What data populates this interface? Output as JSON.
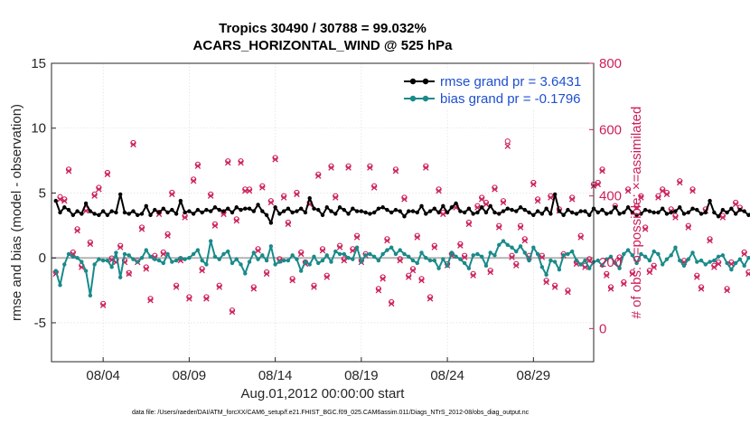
{
  "chart_data": {
    "type": "line",
    "title": "Tropics 30490 / 30788 = 99.032%",
    "subtitle": "ACARS_HORIZONTAL_WIND @ 525 hPa",
    "xlabel": "Aug.01,2012 00:00:00 start",
    "ylabel": "rmse and bias (model - observation)",
    "y2label": "# of obs: o=possible; ×=assimilated",
    "footer": "data file: /Users/raeder/DAI/ATM_forcXX/CAM6_setup/f.e21.FHIST_BGC.f09_025.CAM6assim.011/Diags_NTrS_2012-08/obs_diag_output.nc",
    "xlim": [
      0.5,
      32.0
    ],
    "ylim": [
      -8,
      15
    ],
    "y2lim": [
      -100,
      800
    ],
    "x_ticks": [
      3.5,
      8.5,
      13.5,
      18.5,
      23.5,
      28.5
    ],
    "x_tick_labels": [
      "08/04",
      "08/09",
      "08/14",
      "08/19",
      "08/24",
      "08/29"
    ],
    "y_ticks": [
      -5,
      0,
      5,
      10,
      15
    ],
    "y_tick_labels": [
      "-5",
      "0",
      "5",
      "10",
      "15"
    ],
    "y2_ticks": [
      0,
      200,
      400,
      600,
      800
    ],
    "y2_tick_labels": [
      "0",
      "200",
      "400",
      "600",
      "800"
    ],
    "grid": true,
    "legend_position": "top-right",
    "zero_line": 0,
    "x_start": 0.75,
    "x_step": 0.25,
    "series": [
      {
        "name": "rmse grand pr = 3.6431",
        "axis": "left",
        "color": "#000000",
        "marker": "circle",
        "values": [
          4.4,
          3.5,
          3.9,
          3.7,
          3.3,
          3.6,
          3.4,
          4.2,
          3.6,
          3.4,
          3.3,
          3.6,
          3.3,
          3.6,
          3.5,
          4.9,
          3.5,
          3.4,
          3.6,
          3.3,
          3.4,
          4.0,
          3.3,
          3.7,
          3.5,
          3.8,
          3.5,
          3.7,
          3.4,
          4.4,
          3.5,
          3.6,
          3.4,
          3.7,
          3.5,
          3.7,
          3.6,
          3.9,
          3.7,
          3.6,
          3.8,
          3.5,
          3.9,
          3.7,
          3.8,
          3.8,
          3.6,
          4.1,
          3.6,
          3.3,
          2.7,
          3.9,
          3.4,
          3.6,
          3.8,
          3.5,
          3.6,
          3.8,
          3.5,
          4.6,
          3.8,
          3.7,
          3.3,
          3.9,
          3.6,
          3.4,
          3.9,
          3.7,
          3.4,
          3.8,
          3.6,
          3.6,
          3.5,
          3.4,
          3.5,
          3.8,
          3.9,
          3.7,
          3.5,
          3.7,
          3.6,
          3.2,
          3.6,
          3.6,
          3.5,
          4.0,
          3.4,
          3.6,
          3.8,
          3.5,
          4.0,
          3.5,
          3.9,
          4.2,
          3.6,
          3.5,
          3.8,
          3.4,
          3.5,
          3.9,
          3.5,
          4.0,
          3.5,
          3.4,
          3.6,
          3.8,
          3.7,
          3.6,
          3.9,
          3.7,
          3.5,
          3.3,
          3.6,
          3.4,
          3.8,
          3.4,
          4.9,
          3.6,
          3.3,
          3.7,
          3.5,
          3.4,
          3.6,
          3.6,
          3.3,
          3.8,
          3.5,
          3.7,
          3.4,
          3.5,
          3.9,
          3.4,
          3.5,
          3.9,
          3.5,
          3.3,
          3.4,
          3.7,
          3.6,
          3.5,
          3.5,
          3.8,
          3.4,
          3.5,
          3.6,
          3.9,
          3.4,
          3.5,
          3.8,
          3.7,
          3.4,
          3.5,
          4.4,
          3.5,
          3.2,
          3.7,
          3.5,
          3.8,
          3.4,
          3.7,
          3.6,
          3.3,
          3.6,
          3.8,
          3.3,
          3.5,
          3.5,
          4.1,
          3.4,
          3.5,
          3.8,
          3.6,
          2.8,
          3.4,
          3.7,
          3.6,
          3.4,
          3.8,
          3.4,
          3.2,
          3.9,
          3.6,
          3.4,
          3.8,
          3.5,
          3.7,
          3.4,
          3.6,
          3.3,
          5.0,
          4.6,
          3.4,
          3.9,
          3.5,
          3.7,
          3.4,
          3.3,
          3.5,
          3.8,
          3.6,
          3.4,
          3.8,
          3.5,
          3.6,
          3.9,
          3.7,
          3.3,
          3.6,
          3.8,
          3.9,
          3.5,
          4.7,
          4.4,
          4.0,
          3.5,
          3.6
        ]
      },
      {
        "name": "bias grand pr = -0.1796",
        "axis": "left",
        "color": "#1a8a8a",
        "marker": "circle",
        "values": [
          -1.0,
          -2.1,
          -0.5,
          0.3,
          0.1,
          0.0,
          -0.3,
          -1.0,
          -2.9,
          -0.5,
          -0.1,
          -0.2,
          -0.2,
          -0.7,
          0.4,
          -1.5,
          0.3,
          0.2,
          -0.1,
          -0.3,
          0.0,
          0.6,
          0.1,
          -0.1,
          -0.2,
          -0.4,
          0.3,
          -0.3,
          -0.2,
          0.0,
          -0.1,
          0.0,
          0.3,
          0.6,
          -0.2,
          -0.5,
          1.3,
          0.1,
          -0.1,
          0.3,
          0.5,
          -0.4,
          -0.1,
          -0.5,
          -1.2,
          -0.3,
          0.4,
          -0.1,
          0.2,
          -0.2,
          0.9,
          -0.5,
          -0.3,
          -0.2,
          -0.2,
          0.2,
          -0.1,
          -1.0,
          -0.3,
          -0.5,
          0.1,
          -0.4,
          -0.2,
          0.2,
          -0.3,
          0.5,
          0.3,
          0.3,
          0.0,
          -0.1,
          0.8,
          -0.3,
          0.2,
          0.3,
          0.1,
          -0.2,
          0.3,
          0.6,
          0.8,
          0.3,
          0.6,
          0.3,
          0.1,
          -0.2,
          -0.4,
          0.4,
          0.0,
          -0.2,
          -0.2,
          -0.8,
          -0.1,
          -0.6,
          0.4,
          0.1,
          -0.1,
          -0.4,
          -0.8,
          0.2,
          0.3,
          0.1,
          -0.6,
          0.4,
          0.2,
          1.0,
          1.3,
          1.0,
          0.8,
          0.5,
          0.9,
          0.4,
          -0.2,
          0.8,
          0.3,
          -0.7,
          -1.3,
          -0.2,
          -0.3,
          -0.9,
          0.2,
          0.3,
          0.5,
          -0.2,
          -0.5,
          -0.2,
          -0.8,
          -0.3,
          -0.2,
          -0.6,
          -0.1,
          0.1,
          -0.4,
          -0.8,
          0.3,
          0.6,
          0.2,
          -0.4,
          0.3,
          0.1,
          -0.2,
          0.5,
          0.3,
          -0.5,
          -0.1,
          0.2,
          0.8,
          -0.2,
          -0.6,
          -0.1,
          0.4,
          -0.3,
          -0.2,
          -0.5,
          -0.3,
          -0.2,
          0.1,
          0.2,
          -0.4,
          -0.9,
          -0.4,
          -0.1,
          -0.6,
          0.0,
          0.2,
          -0.3,
          0.1,
          -0.8,
          0.2,
          -0.4,
          -0.1,
          0.4,
          0.1,
          -0.1,
          0.4,
          -0.2,
          -0.5,
          -0.1,
          0.3,
          0.0,
          -0.3,
          0.5,
          0.1,
          -0.2,
          0.1,
          -0.4,
          -0.1,
          -2.6,
          -0.6,
          -0.1,
          -3.4,
          -4.6,
          -0.2,
          -0.6,
          0.1,
          0.7,
          -0.7,
          -2.0,
          -0.5,
          0.3,
          0.0,
          -0.3,
          0.6,
          -0.1,
          0.2,
          0.0,
          -0.2,
          0.3,
          -0.1,
          0.1,
          -0.4,
          -0.2,
          0.1,
          -0.8,
          0.1,
          -0.2,
          -0.6,
          0.4,
          0.2
        ]
      },
      {
        "name": "obs possible",
        "axis": "right",
        "color": "#cc1f5a",
        "marker": "o",
        "values": [
          170,
          397,
          390,
          480,
          230,
          300,
          190,
          360,
          260,
          405,
          425,
          75,
          470,
          212,
          207,
          250,
          205,
          168,
          560,
          205,
          305,
          185,
          90,
          220,
          350,
          230,
          285,
          410,
          130,
          210,
          340,
          95,
          450,
          495,
          180,
          95,
          405,
          315,
          130,
          350,
          505,
          55,
          330,
          505,
          420,
          420,
          125,
          240,
          430,
          170,
          385,
          515,
          210,
          400,
          320,
          150,
          410,
          230,
          200,
          380,
          130,
          465,
          240,
          160,
          490,
          400,
          250,
          210,
          490,
          240,
          280,
          205,
          225,
          490,
          430,
          120,
          155,
          270,
          80,
          480,
          210,
          395,
          160,
          180,
          280,
          150,
          490,
          95,
          250,
          420,
          350,
          195,
          225,
          370,
          255,
          220,
          320,
          165,
          370,
          395,
          380,
          175,
          425,
          310,
          385,
          565,
          220,
          195,
          310,
          270,
          220,
          440,
          390,
          220,
          145,
          400,
          130,
          360,
          225,
          115,
          395,
          200,
          280,
          190,
          210,
          435,
          440,
          480,
          165,
          125,
          370,
          215,
          140,
          420,
          170,
          370,
          400,
          305,
          175,
          190,
          400,
          420,
          410,
          360,
          340,
          445,
          205,
          310,
          420,
          160,
          125,
          360,
          270,
          190,
          200,
          340,
          120,
          200,
          380,
          365,
          230,
          170,
          175,
          425,
          225,
          395,
          150,
          350,
          240,
          310,
          335,
          195,
          70,
          390,
          210,
          270,
          330,
          140,
          490,
          130,
          490,
          210,
          190,
          125,
          220,
          150,
          310,
          250,
          200,
          30,
          305,
          340,
          50,
          265,
          400,
          150,
          120,
          205,
          250,
          95,
          420,
          180,
          315,
          170,
          440,
          325,
          290,
          210,
          340,
          250,
          75,
          190,
          210,
          340,
          400,
          215,
          440,
          380,
          445
        ]
      },
      {
        "name": "obs assimilated",
        "axis": "right",
        "color": "#cc1f5a",
        "marker": "x",
        "values": [
          165,
          390,
          385,
          475,
          225,
          295,
          185,
          355,
          255,
          400,
          420,
          70,
          465,
          207,
          200,
          245,
          200,
          165,
          555,
          200,
          300,
          180,
          85,
          215,
          345,
          225,
          280,
          405,
          125,
          205,
          335,
          90,
          445,
          490,
          175,
          90,
          400,
          310,
          125,
          345,
          500,
          50,
          325,
          500,
          415,
          415,
          120,
          235,
          425,
          165,
          380,
          510,
          205,
          395,
          315,
          145,
          405,
          225,
          195,
          375,
          125,
          460,
          235,
          155,
          485,
          395,
          245,
          205,
          485,
          235,
          275,
          200,
          220,
          485,
          425,
          115,
          150,
          265,
          75,
          475,
          205,
          390,
          155,
          175,
          275,
          145,
          485,
          90,
          245,
          415,
          345,
          190,
          220,
          365,
          250,
          215,
          315,
          160,
          365,
          390,
          375,
          170,
          420,
          305,
          380,
          550,
          215,
          190,
          305,
          265,
          215,
          435,
          385,
          215,
          140,
          395,
          125,
          355,
          220,
          110,
          390,
          195,
          275,
          185,
          205,
          430,
          435,
          475,
          160,
          120,
          365,
          210,
          135,
          415,
          165,
          365,
          395,
          300,
          170,
          185,
          395,
          415,
          405,
          355,
          335,
          440,
          200,
          305,
          415,
          155,
          120,
          355,
          265,
          185,
          195,
          335,
          115,
          195,
          375,
          360,
          225,
          165,
          170,
          420,
          220,
          390,
          145,
          345,
          235,
          305,
          330,
          190,
          65,
          385,
          205,
          265,
          325,
          135,
          485,
          125,
          485,
          205,
          185,
          120,
          215,
          145,
          305,
          245,
          195,
          25,
          300,
          335,
          45,
          260,
          395,
          145,
          115,
          200,
          245,
          90,
          415,
          175,
          310,
          165,
          435,
          320,
          285,
          205,
          335,
          245,
          70,
          185,
          205,
          335,
          395,
          210,
          435,
          375,
          440
        ]
      }
    ]
  }
}
